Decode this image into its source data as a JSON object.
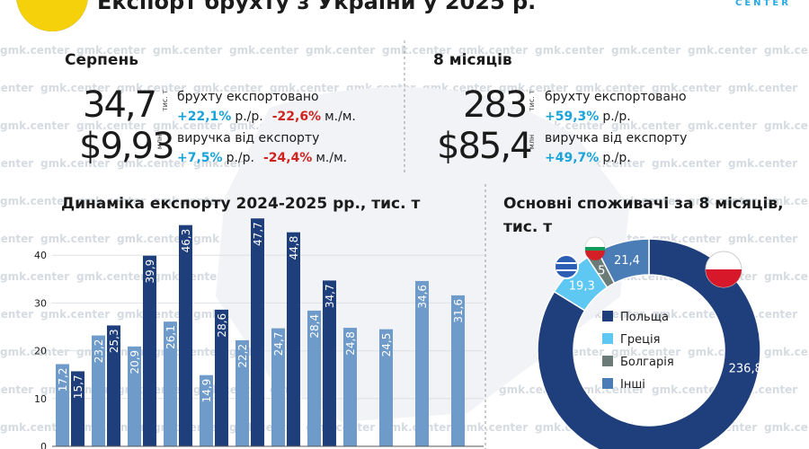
{
  "header": {
    "title": "Експорт брухту з України у 2025 р.",
    "logo": "CENTER",
    "watermark": "gmk.center"
  },
  "kpis": [
    {
      "period": "Серпень",
      "rows": [
        {
          "value": "34,7",
          "unit": "тис. т",
          "label": "брухту експортовано",
          "changes": [
            {
              "value": "+22,1%",
              "basis": "р./р."
            },
            {
              "value": "-22,6%",
              "basis": "м./м."
            }
          ]
        },
        {
          "value": "$9,93",
          "unit": "млн",
          "label": "виручка від експорту",
          "changes": [
            {
              "value": "+7,5%",
              "basis": "р./р."
            },
            {
              "value": "-24,4%",
              "basis": "м./м."
            }
          ]
        }
      ]
    },
    {
      "period": "8 місяців",
      "rows": [
        {
          "value": "283",
          "unit": "тис. т",
          "label": "брухту експортовано",
          "changes": [
            {
              "value": "+59,3%",
              "basis": "р./р."
            }
          ]
        },
        {
          "value": "$85,4",
          "unit": "млн",
          "label": "виручка від експорту",
          "changes": [
            {
              "value": "+49,7%",
              "basis": "р./р."
            }
          ]
        }
      ]
    }
  ],
  "chart_data": [
    {
      "type": "bar",
      "title": "Динаміка експорту 2024-2025 рр., тис. т",
      "categories": [
        null,
        null,
        null,
        null,
        null,
        null,
        null,
        null,
        null,
        null,
        null,
        null
      ],
      "series": [
        {
          "color": "#6f9bcb",
          "values": [
            17.2,
            23.2,
            20.9,
            26.1,
            14.9,
            22.2,
            24.7,
            28.4,
            24.8,
            24.5,
            34.6,
            31.6
          ],
          "value_labels": [
            "17,2",
            "23,2",
            "20,9",
            "26,1",
            "14,9",
            "22,2",
            "24,7",
            "28,4",
            "24,8",
            "24,5",
            "34,6",
            "31,6"
          ]
        },
        {
          "color": "#1f3f7c",
          "values": [
            15.7,
            25.3,
            39.9,
            46.3,
            28.6,
            47.7,
            44.8,
            34.7,
            null,
            null,
            null,
            null
          ],
          "value_labels": [
            "15,7",
            "25,3",
            "39,9",
            "46,3",
            "28,6",
            "47,7",
            "44,8",
            "34,7",
            null,
            null,
            null,
            null
          ]
        }
      ],
      "ylim": [
        0,
        50
      ],
      "yticks": [
        0,
        10,
        20,
        30,
        40
      ],
      "grid": true
    },
    {
      "type": "pie",
      "title": [
        "Основні споживачі за 8 місяців,",
        "тис. т"
      ],
      "categories": [
        "Польща",
        "Греція",
        "Болгарія",
        "Інші"
      ],
      "values": [
        236.8,
        19.3,
        5,
        21.4
      ],
      "value_labels": [
        "236,8",
        "19,3",
        "5",
        "21,4"
      ],
      "colors": [
        "#1f3f7c",
        "#5ec8f2",
        "#6b7c78",
        "#4a7db5"
      ],
      "legend": "center"
    }
  ]
}
